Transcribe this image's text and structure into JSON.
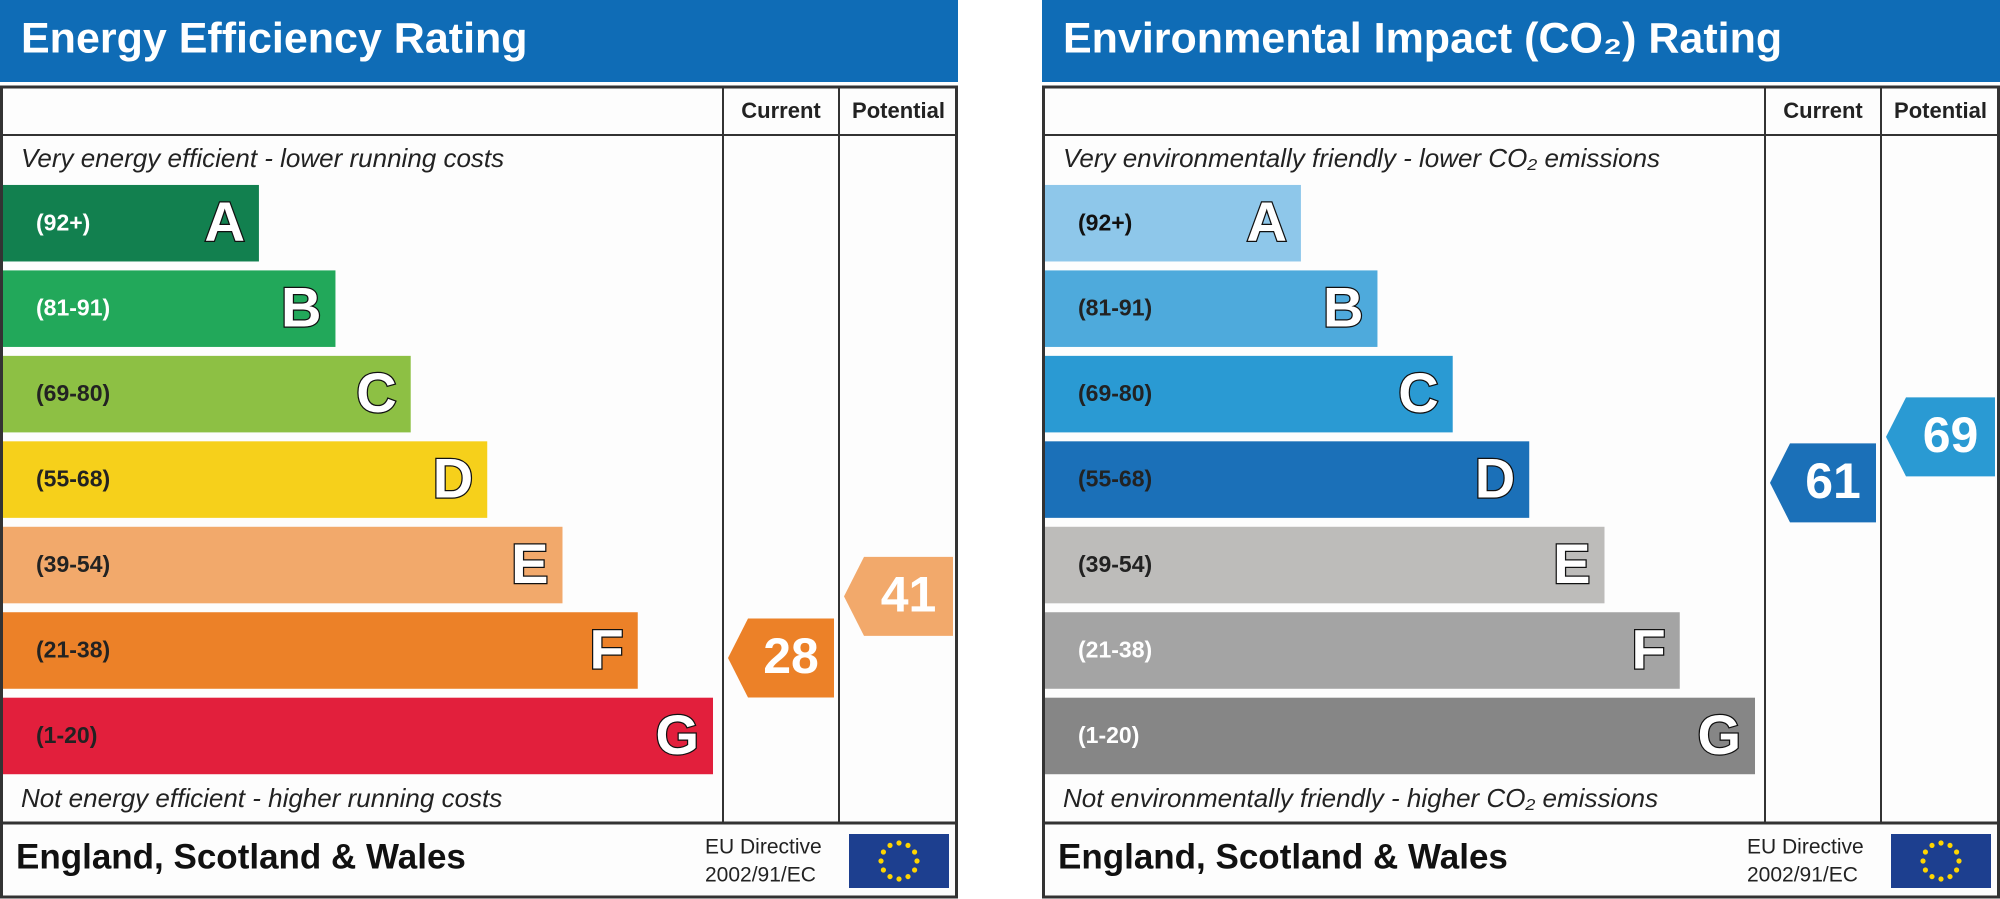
{
  "panels": [
    {
      "title": "Energy Efficiency Rating",
      "columns": [
        "Current",
        "Potential"
      ],
      "top_note": "Very energy efficient - lower running costs",
      "bottom_note": "Not energy efficient - higher running costs",
      "bands": [
        {
          "range": "(92+)",
          "letter": "A",
          "color": "#12804f",
          "text_color": "#ffffff"
        },
        {
          "range": "(81-91)",
          "letter": "B",
          "color": "#22a85a",
          "text_color": "#ffffff"
        },
        {
          "range": "(69-80)",
          "letter": "C",
          "color": "#8dc044",
          "text_color": "#222222"
        },
        {
          "range": "(55-68)",
          "letter": "D",
          "color": "#f6d01b",
          "text_color": "#222222"
        },
        {
          "range": "(39-54)",
          "letter": "E",
          "color": "#f2a96b",
          "text_color": "#222222"
        },
        {
          "range": "(21-38)",
          "letter": "F",
          "color": "#ec8128",
          "text_color": "#222222"
        },
        {
          "range": "(1-20)",
          "letter": "G",
          "color": "#e21f3c",
          "text_color": "#222222"
        }
      ],
      "current": 28,
      "potential": 41,
      "footer": "England, Scotland & Wales",
      "directive": [
        "EU Directive",
        "2002/91/EC"
      ]
    },
    {
      "title": "Environmental Impact (CO₂) Rating",
      "columns": [
        "Current",
        "Potential"
      ],
      "top_note": "Very environmentally friendly - lower CO₂ emissions",
      "bottom_note": "Not environmentally friendly - higher CO₂ emissions",
      "bands": [
        {
          "range": "(92+)",
          "letter": "A",
          "color": "#8ec7ea",
          "text_color": "#111111"
        },
        {
          "range": "(81-91)",
          "letter": "B",
          "color": "#4eaadc",
          "text_color": "#222222"
        },
        {
          "range": "(69-80)",
          "letter": "C",
          "color": "#2a9ad3",
          "text_color": "#222222"
        },
        {
          "range": "(55-68)",
          "letter": "D",
          "color": "#1b70b8",
          "text_color": "#222222"
        },
        {
          "range": "(39-54)",
          "letter": "E",
          "color": "#bdbcba",
          "text_color": "#222222"
        },
        {
          "range": "(21-38)",
          "letter": "F",
          "color": "#a4a4a4",
          "text_color": "#ffffff"
        },
        {
          "range": "(1-20)",
          "letter": "G",
          "color": "#868686",
          "text_color": "#ffffff"
        }
      ],
      "current": 61,
      "potential": 69,
      "footer": "England, Scotland & Wales",
      "directive": [
        "EU Directive",
        "2002/91/EC"
      ]
    }
  ]
}
